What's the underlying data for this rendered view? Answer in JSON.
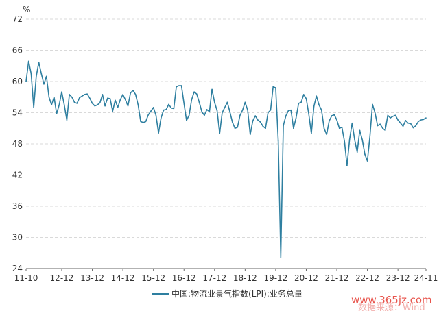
{
  "chart_data": {
    "type": "line",
    "unit_label": "%",
    "ylim": [
      24,
      72
    ],
    "y_ticks": [
      "72",
      "66",
      "60",
      "54",
      "48",
      "42",
      "36",
      "30",
      "24"
    ],
    "x_ticks": [
      "11-10",
      "12-12",
      "13-12",
      "14-12",
      "15-12",
      "16-12",
      "17-12",
      "18-12",
      "19-12",
      "20-12",
      "21-12",
      "22-12",
      "23-12",
      "24-11"
    ],
    "grid": "horizontal dashed",
    "legend_position": "bottom",
    "series": [
      {
        "name": "中国:物流业景气指数(LPI):业务总量",
        "color": "#2e7fa0",
        "points": [
          [
            "11-10",
            60.0
          ],
          [
            "11-11",
            63.9
          ],
          [
            "11-12",
            61.5
          ],
          [
            "12-01",
            55.0
          ],
          [
            "12-02",
            61.0
          ],
          [
            "12-03",
            63.7
          ],
          [
            "12-04",
            61.5
          ],
          [
            "12-05",
            59.5
          ],
          [
            "12-06",
            61.0
          ],
          [
            "12-07",
            57.0
          ],
          [
            "12-08",
            55.5
          ],
          [
            "12-09",
            57.0
          ],
          [
            "12-10",
            53.8
          ],
          [
            "12-11",
            55.5
          ],
          [
            "12-12",
            58.0
          ],
          [
            "13-01",
            55.5
          ],
          [
            "13-02",
            52.6
          ],
          [
            "13-03",
            57.5
          ],
          [
            "13-04",
            57.0
          ],
          [
            "13-05",
            56.0
          ],
          [
            "13-06",
            55.8
          ],
          [
            "13-07",
            56.9
          ],
          [
            "13-08",
            57.2
          ],
          [
            "13-09",
            57.5
          ],
          [
            "13-10",
            57.6
          ],
          [
            "13-11",
            56.8
          ],
          [
            "13-12",
            55.8
          ],
          [
            "14-01",
            55.3
          ],
          [
            "14-02",
            55.5
          ],
          [
            "14-03",
            55.9
          ],
          [
            "14-04",
            57.5
          ],
          [
            "14-05",
            55.3
          ],
          [
            "14-06",
            56.8
          ],
          [
            "14-07",
            56.7
          ],
          [
            "14-08",
            54.3
          ],
          [
            "14-09",
            56.4
          ],
          [
            "14-10",
            55.0
          ],
          [
            "14-11",
            56.5
          ],
          [
            "14-12",
            57.5
          ],
          [
            "15-01",
            56.5
          ],
          [
            "15-02",
            55.3
          ],
          [
            "15-03",
            57.8
          ],
          [
            "15-04",
            58.3
          ],
          [
            "15-05",
            57.5
          ],
          [
            "15-06",
            55.5
          ],
          [
            "15-07",
            52.3
          ],
          [
            "15-08",
            52.1
          ],
          [
            "15-09",
            52.3
          ],
          [
            "15-10",
            53.6
          ],
          [
            "15-11",
            54.3
          ],
          [
            "15-12",
            55.0
          ],
          [
            "16-01",
            53.5
          ],
          [
            "16-02",
            50.1
          ],
          [
            "16-03",
            53.0
          ],
          [
            "16-04",
            54.5
          ],
          [
            "16-05",
            54.6
          ],
          [
            "16-06",
            55.6
          ],
          [
            "16-07",
            54.9
          ],
          [
            "16-08",
            54.8
          ],
          [
            "16-09",
            59.0
          ],
          [
            "16-10",
            59.2
          ],
          [
            "16-11",
            59.2
          ],
          [
            "16-12",
            55.8
          ],
          [
            "17-01",
            52.5
          ],
          [
            "17-02",
            53.5
          ],
          [
            "17-03",
            56.5
          ],
          [
            "17-04",
            58.0
          ],
          [
            "17-05",
            57.6
          ],
          [
            "17-06",
            56.0
          ],
          [
            "17-07",
            54.2
          ],
          [
            "17-08",
            53.5
          ],
          [
            "17-09",
            54.6
          ],
          [
            "17-10",
            54.2
          ],
          [
            "17-11",
            58.5
          ],
          [
            "17-12",
            56.0
          ],
          [
            "18-01",
            54.4
          ],
          [
            "18-02",
            50.0
          ],
          [
            "18-03",
            54.0
          ],
          [
            "18-04",
            55.0
          ],
          [
            "18-05",
            56.0
          ],
          [
            "18-06",
            54.2
          ],
          [
            "18-07",
            52.2
          ],
          [
            "18-08",
            51.0
          ],
          [
            "18-09",
            51.2
          ],
          [
            "18-10",
            53.5
          ],
          [
            "18-11",
            54.5
          ],
          [
            "18-12",
            56.0
          ],
          [
            "19-01",
            54.5
          ],
          [
            "19-02",
            49.8
          ],
          [
            "19-03",
            52.4
          ],
          [
            "19-04",
            53.4
          ],
          [
            "19-05",
            52.6
          ],
          [
            "19-06",
            52.2
          ],
          [
            "19-07",
            51.4
          ],
          [
            "19-08",
            51.0
          ],
          [
            "19-09",
            54.0
          ],
          [
            "19-10",
            54.5
          ],
          [
            "19-11",
            59.0
          ],
          [
            "19-12",
            58.8
          ],
          [
            "20-01",
            48.6
          ],
          [
            "20-02",
            26.2
          ],
          [
            "20-03",
            51.5
          ],
          [
            "20-04",
            53.4
          ],
          [
            "20-05",
            54.4
          ],
          [
            "20-06",
            54.5
          ],
          [
            "20-07",
            51.0
          ],
          [
            "20-08",
            53.0
          ],
          [
            "20-09",
            55.8
          ],
          [
            "20-10",
            56.0
          ],
          [
            "20-11",
            57.5
          ],
          [
            "20-12",
            56.7
          ],
          [
            "21-01",
            53.7
          ],
          [
            "21-02",
            50.0
          ],
          [
            "21-03",
            55.2
          ],
          [
            "21-04",
            57.2
          ],
          [
            "21-05",
            55.5
          ],
          [
            "21-06",
            54.5
          ],
          [
            "21-07",
            51.0
          ],
          [
            "21-08",
            49.8
          ],
          [
            "21-09",
            52.4
          ],
          [
            "21-10",
            53.4
          ],
          [
            "21-11",
            53.6
          ],
          [
            "21-12",
            52.6
          ],
          [
            "22-01",
            51.0
          ],
          [
            "22-02",
            51.2
          ],
          [
            "22-03",
            48.5
          ],
          [
            "22-04",
            43.8
          ],
          [
            "22-05",
            48.8
          ],
          [
            "22-06",
            52.0
          ],
          [
            "22-07",
            48.8
          ],
          [
            "22-08",
            46.4
          ],
          [
            "22-09",
            50.6
          ],
          [
            "22-10",
            48.8
          ],
          [
            "22-11",
            46.0
          ],
          [
            "22-12",
            44.7
          ],
          [
            "23-01",
            49.5
          ],
          [
            "23-02",
            55.6
          ],
          [
            "23-03",
            54.0
          ],
          [
            "23-04",
            51.5
          ],
          [
            "23-05",
            51.8
          ],
          [
            "23-06",
            51.0
          ],
          [
            "23-07",
            50.6
          ],
          [
            "23-08",
            53.5
          ],
          [
            "23-09",
            53.0
          ],
          [
            "23-10",
            53.3
          ],
          [
            "23-11",
            53.5
          ],
          [
            "23-12",
            52.6
          ],
          [
            "24-01",
            52.0
          ],
          [
            "24-02",
            51.4
          ],
          [
            "24-03",
            52.5
          ],
          [
            "24-04",
            52.0
          ],
          [
            "24-05",
            51.9
          ],
          [
            "24-06",
            51.1
          ],
          [
            "24-07",
            51.5
          ],
          [
            "24-08",
            52.3
          ],
          [
            "24-09",
            52.6
          ],
          [
            "24-10",
            52.7
          ],
          [
            "24-11",
            53.0
          ]
        ]
      }
    ]
  },
  "watermark": {
    "site": "www.365jz.com",
    "source": "数据来源：Wind"
  }
}
